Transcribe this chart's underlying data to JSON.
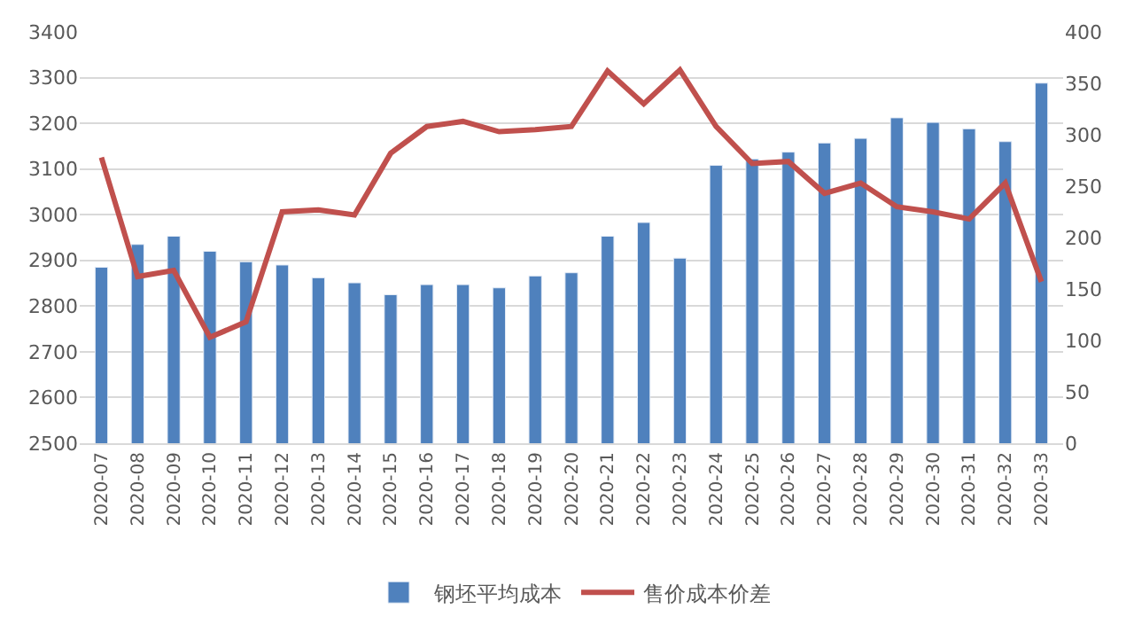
{
  "chart_data": {
    "type": "bar",
    "categories": [
      "2020-07",
      "2020-08",
      "2020-09",
      "2020-10",
      "2020-11",
      "2020-12",
      "2020-13",
      "2020-14",
      "2020-15",
      "2020-16",
      "2020-17",
      "2020-18",
      "2020-19",
      "2020-20",
      "2020-21",
      "2020-22",
      "2020-23",
      "2020-24",
      "2020-25",
      "2020-26",
      "2020-27",
      "2020-28",
      "2020-29",
      "2020-30",
      "2020-31",
      "2020-32",
      "2020-33"
    ],
    "series": [
      {
        "name": "钢坯平均成本",
        "color": "#4f81bd",
        "values": [
          2885,
          2935,
          2953,
          2920,
          2897,
          2890,
          2862,
          2851,
          2825,
          2847,
          2847,
          2840,
          2866,
          2873,
          2953,
          2983,
          2905,
          3108,
          3122,
          3137,
          3157,
          3167,
          3212,
          3202,
          3188,
          3160,
          3288
        ]
      },
      {
        "name": "售价成本价差",
        "type": "line",
        "axis": "y2",
        "color": "#c0504d",
        "line_style": "solid",
        "values": [
          278,
          162,
          168,
          103,
          118,
          225,
          227,
          222,
          282,
          308,
          313,
          303,
          305,
          308,
          362,
          330,
          363,
          308,
          272,
          274,
          243,
          253,
          230,
          225,
          218,
          253,
          157
        ]
      }
    ],
    "ylim": [
      2500,
      3400
    ],
    "yticks": [
      2500,
      2600,
      2700,
      2800,
      2900,
      3000,
      3100,
      3200,
      3300,
      3400
    ],
    "y2lim": [
      0,
      400
    ],
    "y2ticks": [
      0,
      50,
      100,
      150,
      200,
      250,
      300,
      350,
      400
    ],
    "grid": "y",
    "legend": "bottom",
    "marker": "none"
  }
}
